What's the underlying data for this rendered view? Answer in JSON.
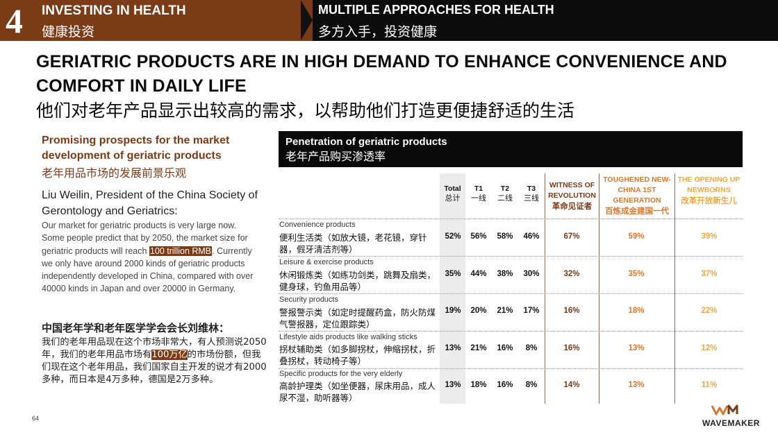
{
  "header": {
    "section_number": "4",
    "left_title_en": "INVESTING IN HEALTH",
    "left_title_cn": "健康投资",
    "right_title_en": "MULTIPLE APPROACHES FOR HEALTH",
    "right_title_cn": "多方入手，投资健康"
  },
  "title": {
    "en": "GERIATRIC PRODUCTS ARE IN HIGH DEMAND TO ENHANCE CONVENIENCE AND COMFORT IN DAILY LIFE",
    "cn": "他们对老年产品显示出较高的需求，以帮助他们打造更便捷舒适的生活"
  },
  "left": {
    "subtitle_en": "Promising prospects for the market development of geriatric products",
    "subtitle_cn": "老年用品市场的发展前景乐观",
    "person_en": "Liu Weilin, President of the China Society of Gerontology and Geriatrics:",
    "quote_en_a": "Our market for geriatric products is very large now. Some people predict that by 2050, the market size for geriatric products will reach ",
    "quote_en_hl": "100 trillion RMB",
    "quote_en_b": ". Currently we only have around 2000 kinds of geriatric products independently developed in China, compared with over 40000 kinds in Japan and over 20000 in Germany.",
    "person_cn": "中国老年学和老年医学学会会长刘维林：",
    "quote_cn_a": "我们的老年用品现在这个市场非常大，有人预测说2050年，我们的老年用品市场有",
    "quote_cn_hl": "100万亿",
    "quote_cn_b": "的市场份额，但我们现在这个老年用品，我们国家自主开发的说才有2000多种，而日本是4万多种，德国是2万多种。"
  },
  "panel": {
    "title_en": "Penetration of geriatric products",
    "title_cn": "老年产品购买渗透率",
    "columns": [
      {
        "en": "Total",
        "cn": "总计"
      },
      {
        "en": "T1",
        "cn": "一线"
      },
      {
        "en": "T2",
        "cn": "二线"
      },
      {
        "en": "T3",
        "cn": "三线"
      },
      {
        "en": "WITNESS OF REVOLUTION",
        "cn": "革命见证者",
        "color": "#7a3b16"
      },
      {
        "en": "TOUGHENED NEW-CHINA 1ST GENERATION",
        "cn": "百炼成金建国一代",
        "color": "#d9782c"
      },
      {
        "en": "THE OPENING UP NEWBORNS",
        "cn": "改革开放新生儿",
        "color": "#f0a83c"
      }
    ],
    "rows": [
      {
        "en": "Convenience products",
        "cn": "便利生活类（如放大镜，老花镜，穿针器，假牙清洁剂等）",
        "values": [
          "52%",
          "56%",
          "58%",
          "46%",
          "67%",
          "59%",
          "39%"
        ]
      },
      {
        "en": "Leisure & exercise products",
        "cn": "休闲锻炼类（如练功剑类，跳舞及扇类，健身球，钓鱼用品等）",
        "values": [
          "35%",
          "44%",
          "38%",
          "30%",
          "32%",
          "35%",
          "37%"
        ]
      },
      {
        "en": "Security products",
        "cn": "警报警示类（如定时提醒药盒，防火防煤气警报器，定位跟踪类）",
        "values": [
          "19%",
          "20%",
          "21%",
          "17%",
          "16%",
          "18%",
          "22%"
        ]
      },
      {
        "en": "Lifestyle aids products like walking sticks",
        "cn": "拐杖辅助类（如多脚拐杖，伸缩拐杖，折叠拐杖，转动椅子等）",
        "values": [
          "13%",
          "21%",
          "16%",
          "8%",
          "16%",
          "13%",
          "12%"
        ]
      },
      {
        "en": "Specific products for the very elderly",
        "cn": "高龄护理类（如坐便器，尿床用品，成人尿不湿，助听器等）",
        "values": [
          "13%",
          "18%",
          "16%",
          "8%",
          "14%",
          "13%",
          "11%"
        ]
      }
    ]
  },
  "footer": {
    "page_number": "64",
    "logo_text": "WAVEMAKER"
  }
}
